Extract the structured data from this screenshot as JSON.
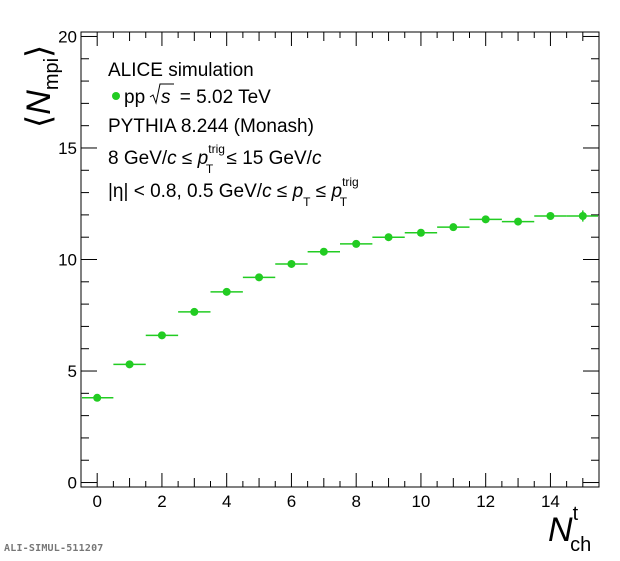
{
  "chart_data": {
    "type": "scatter",
    "xlabel_main": "N",
    "xlabel_sup": "t",
    "xlabel_sub": "ch",
    "ylabel_main": "N",
    "ylabel_sub": "mpi",
    "xlim": [
      -0.5,
      15.5
    ],
    "ylim": [
      -0.2,
      20.2
    ],
    "x_ticks": [
      0,
      2,
      4,
      6,
      8,
      10,
      12,
      14
    ],
    "y_ticks": [
      0,
      5,
      10,
      15,
      20
    ],
    "grid": false,
    "legend_placement": "top-left",
    "marker_color": "#22cc22",
    "series": [
      {
        "name": "pp",
        "x": [
          0,
          1,
          2,
          3,
          4,
          5,
          6,
          7,
          8,
          9,
          10,
          11,
          12,
          13,
          14,
          15
        ],
        "y": [
          3.8,
          5.3,
          6.6,
          7.65,
          8.55,
          9.2,
          9.8,
          10.35,
          10.7,
          11.0,
          11.2,
          11.45,
          11.8,
          11.7,
          11.95,
          11.95
        ],
        "xerr": [
          0.5,
          0.5,
          0.5,
          0.5,
          0.5,
          0.5,
          0.5,
          0.5,
          0.5,
          0.5,
          0.5,
          0.5,
          0.5,
          0.5,
          0.5,
          0.5
        ],
        "yerr": [
          0.05,
          0.05,
          0.05,
          0.05,
          0.05,
          0.05,
          0.05,
          0.05,
          0.05,
          0.05,
          0.05,
          0.05,
          0.05,
          0.05,
          0.1,
          0.25
        ]
      }
    ],
    "annotations": {
      "line1": "ALICE simulation",
      "line2_a": "pp",
      "line2_b": "s",
      "line2_c": "= 5.02 TeV",
      "line3": "PYTHIA 8.244 (Monash)",
      "line4_a": "8 GeV/",
      "line4_b": "c",
      "line4_c": " ≤ ",
      "line4_d": "p",
      "line4_e": "trig",
      "line4_f": "T",
      "line4_g": " ≤ 15 GeV/",
      "line4_h": "c",
      "line5_a": "|η| < 0.8, 0.5 GeV/",
      "line5_b": "c",
      "line5_c": " ≤ ",
      "line5_d": "p",
      "line5_e": "T",
      "line5_f": " ≤ ",
      "line5_g": "p",
      "line5_h": "trig",
      "line5_i": "T"
    }
  },
  "footer": "ALI-SIMUL-511207"
}
